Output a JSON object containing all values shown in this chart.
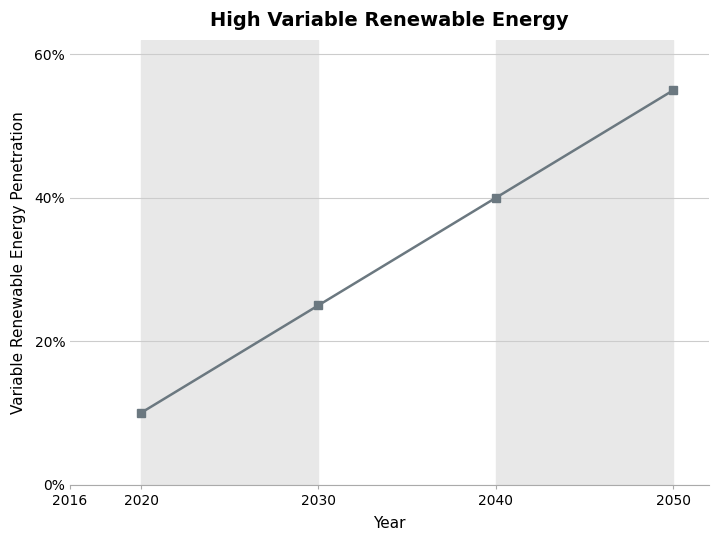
{
  "title": "High Variable Renewable Energy",
  "xlabel": "Year",
  "ylabel": "Variable Renewable Energy Penetration",
  "x": [
    2020,
    2030,
    2040,
    2050
  ],
  "y": [
    0.1,
    0.25,
    0.4,
    0.55
  ],
  "line_color": "#6b7880",
  "marker": "s",
  "marker_color": "#6b7880",
  "marker_size": 6,
  "line_width": 1.8,
  "xlim": [
    2016,
    2052
  ],
  "ylim": [
    0.0,
    0.62
  ],
  "yticks": [
    0.0,
    0.2,
    0.4,
    0.6
  ],
  "xticks": [
    2016,
    2020,
    2030,
    2040,
    2050
  ],
  "shade_bands": [
    {
      "xmin": 2020,
      "xmax": 2030,
      "color": "#e8e8e8"
    },
    {
      "xmin": 2040,
      "xmax": 2050,
      "color": "#e8e8e8"
    }
  ],
  "background_color": "#ffffff",
  "grid_color": "#cccccc",
  "title_fontsize": 14,
  "label_fontsize": 11,
  "tick_fontsize": 10,
  "figsize": [
    7.2,
    5.42
  ],
  "dpi": 100
}
